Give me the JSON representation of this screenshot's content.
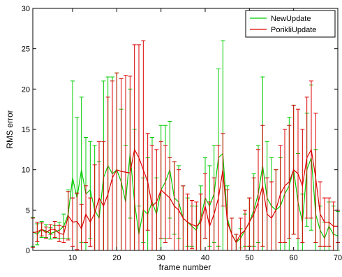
{
  "chart_data": {
    "type": "line",
    "title": "",
    "xlabel": "frame number",
    "ylabel": "RMS error",
    "xlim": [
      1,
      70
    ],
    "ylim": [
      0,
      30
    ],
    "x_ticks": [
      10,
      20,
      30,
      40,
      50,
      60,
      70
    ],
    "y_ticks": [
      0,
      5,
      10,
      15,
      20,
      25,
      30
    ],
    "grid": false,
    "legend_position": "top-right",
    "x": [
      1,
      2,
      3,
      4,
      5,
      6,
      7,
      8,
      9,
      10,
      11,
      12,
      13,
      14,
      15,
      16,
      17,
      18,
      19,
      20,
      21,
      22,
      23,
      24,
      25,
      26,
      27,
      28,
      29,
      30,
      31,
      32,
      33,
      34,
      35,
      36,
      37,
      38,
      39,
      40,
      41,
      42,
      43,
      44,
      45,
      46,
      47,
      48,
      49,
      50,
      51,
      52,
      53,
      54,
      55,
      56,
      57,
      58,
      59,
      60,
      61,
      62,
      63,
      64,
      65,
      66,
      67,
      68,
      69,
      70
    ],
    "series": [
      {
        "name": "NewUpdate",
        "color": "#00cc00",
        "values": [
          2.3,
          2.0,
          2.6,
          2.4,
          2.1,
          2.3,
          2.5,
          3.0,
          4.5,
          9.0,
          6.5,
          10.0,
          7.0,
          7.5,
          5.0,
          4.0,
          9.0,
          10.5,
          9.5,
          10.0,
          8.5,
          6.0,
          12.0,
          6.0,
          2.0,
          5.0,
          4.5,
          6.0,
          4.5,
          7.5,
          8.5,
          10.0,
          6.5,
          6.0,
          4.0,
          3.5,
          3.0,
          2.5,
          4.0,
          6.5,
          5.5,
          7.0,
          11.5,
          12.0,
          4.0,
          2.0,
          1.0,
          1.5,
          2.5,
          3.5,
          5.0,
          7.0,
          10.5,
          6.5,
          5.5,
          5.0,
          5.5,
          7.0,
          8.0,
          10.0,
          6.0,
          3.5,
          10.0,
          11.5,
          4.5,
          2.5,
          1.5,
          3.0,
          2.0,
          1.8
        ],
        "error": [
          1.8,
          1.3,
          1.0,
          0.8,
          0.7,
          0.8,
          1.0,
          1.5,
          3.0,
          12.0,
          10.0,
          9.0,
          7.0,
          6.0,
          8.0,
          7.0,
          12.0,
          11.0,
          12.0,
          12.0,
          9.0,
          7.0,
          8.0,
          9.0,
          3.5,
          4.0,
          7.0,
          8.0,
          4.5,
          8.0,
          7.0,
          6.0,
          4.5,
          4.5,
          4.0,
          3.0,
          2.5,
          3.0,
          4.0,
          5.0,
          5.0,
          6.0,
          11.0,
          14.0,
          4.0,
          2.0,
          1.0,
          1.2,
          2.0,
          3.0,
          4.5,
          6.0,
          11.0,
          7.0,
          6.0,
          5.0,
          6.0,
          8.0,
          8.5,
          8.0,
          6.0,
          3.5,
          7.0,
          9.0,
          8.0,
          3.0,
          2.0,
          3.0,
          3.5,
          3.0
        ]
      },
      {
        "name": "PorikliUpdate",
        "color": "#dd0000",
        "values": [
          2.2,
          2.3,
          2.6,
          2.2,
          2.6,
          2.6,
          2.1,
          2.0,
          4.3,
          3.5,
          3.6,
          2.7,
          4.5,
          3.5,
          4.6,
          6.5,
          5.5,
          7.0,
          9.0,
          10.0,
          9.8,
          9.7,
          9.6,
          12.5,
          11.5,
          10.0,
          8.5,
          5.5,
          6.0,
          7.5,
          7.0,
          6.5,
          5.5,
          5.0,
          4.0,
          3.5,
          3.2,
          3.0,
          3.5,
          5.5,
          3.0,
          4.5,
          6.5,
          10.0,
          3.5,
          2.0,
          1.0,
          2.0,
          2.5,
          3.5,
          4.5,
          6.0,
          8.0,
          4.5,
          4.0,
          5.0,
          7.0,
          8.0,
          8.5,
          10.0,
          9.5,
          8.0,
          11.5,
          12.5,
          9.0,
          4.5,
          3.5,
          3.5,
          3.0,
          3.0
        ],
        "error": [
          1.8,
          1.2,
          0.8,
          0.7,
          0.6,
          1.0,
          1.0,
          1.0,
          3.0,
          3.0,
          3.5,
          3.0,
          3.5,
          3.0,
          6.0,
          7.0,
          8.0,
          12.0,
          12.0,
          12.0,
          11.5,
          12.0,
          12.0,
          13.0,
          14.0,
          16.0,
          6.0,
          7.5,
          6.5,
          6.0,
          6.0,
          5.0,
          5.5,
          5.0,
          4.0,
          3.5,
          3.0,
          3.0,
          3.5,
          4.0,
          3.0,
          4.5,
          6.5,
          4.5,
          4.0,
          2.0,
          1.0,
          2.0,
          2.5,
          3.0,
          4.5,
          6.5,
          7.5,
          4.5,
          4.5,
          5.0,
          6.0,
          7.0,
          7.0,
          8.0,
          8.0,
          7.0,
          7.5,
          8.5,
          8.0,
          4.0,
          3.0,
          3.0,
          3.0,
          2.0
        ]
      }
    ]
  }
}
